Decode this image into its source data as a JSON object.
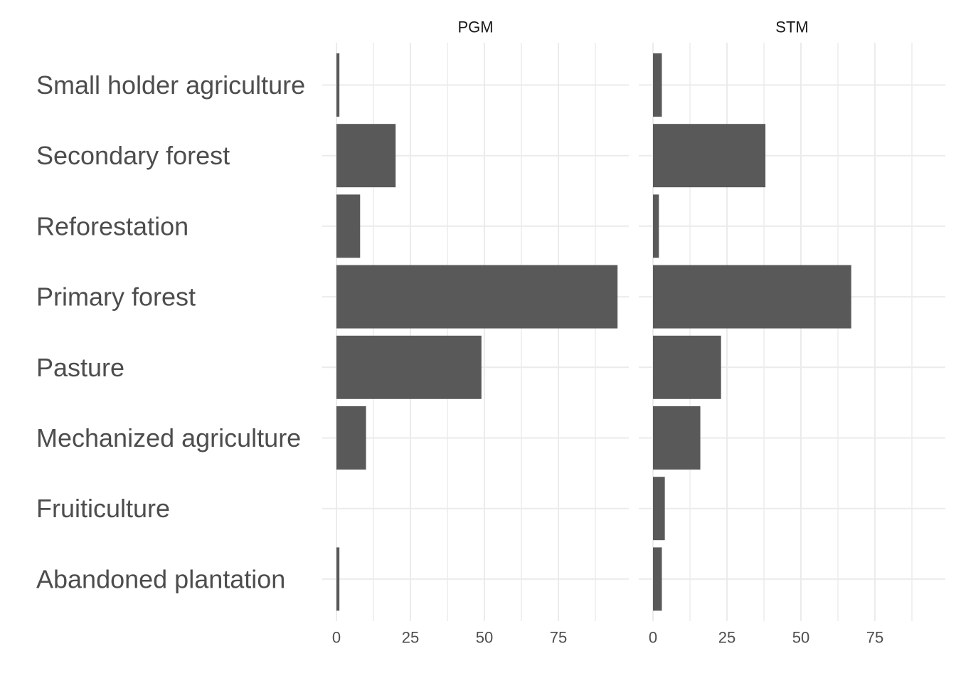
{
  "chart_data": {
    "type": "bar",
    "orientation": "horizontal",
    "facets": [
      "PGM",
      "STM"
    ],
    "categories": [
      "Small holder agriculture",
      "Secondary forest",
      "Reforestation",
      "Primary forest",
      "Pasture",
      "Mechanized agriculture",
      "Fruiticulture",
      "Abandoned plantation"
    ],
    "series": [
      {
        "facet": "PGM",
        "values": [
          1,
          20,
          8,
          95,
          49,
          10,
          0,
          1
        ]
      },
      {
        "facet": "STM",
        "values": [
          3,
          38,
          2,
          67,
          23,
          16,
          4,
          3
        ]
      }
    ],
    "xticks": [
      "0",
      "25",
      "50",
      "75"
    ],
    "xlim": [
      0,
      100
    ],
    "xlabel": "",
    "ylabel": "",
    "grid": true,
    "bar_color": "#595959",
    "grid_color": "#ebebeb"
  }
}
